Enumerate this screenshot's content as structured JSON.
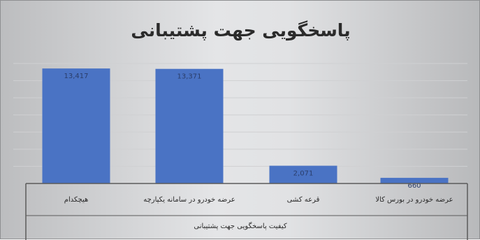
{
  "chart_data": {
    "type": "bar",
    "title": "پاسخگویی جهت پشتیبانی",
    "categories": [
      "هیچکدام",
      "عرضه خودرو در سامانه یکپارچه",
      "قرعه کشی",
      "عرضه خودرو در بورس کالا"
    ],
    "values": [
      13417,
      13371,
      2071,
      660
    ],
    "value_labels": [
      "13,417",
      "13,371",
      "2,071",
      "660"
    ],
    "xlabel": "کیفیت پاسخگویی جهت پشتیبانی",
    "ylabel": "",
    "ylim": [
      0,
      14000
    ],
    "grid": true,
    "colors": {
      "bar": "#4a73c4",
      "grid": "#cfd0d2",
      "axis": "#5a5a5a"
    }
  }
}
